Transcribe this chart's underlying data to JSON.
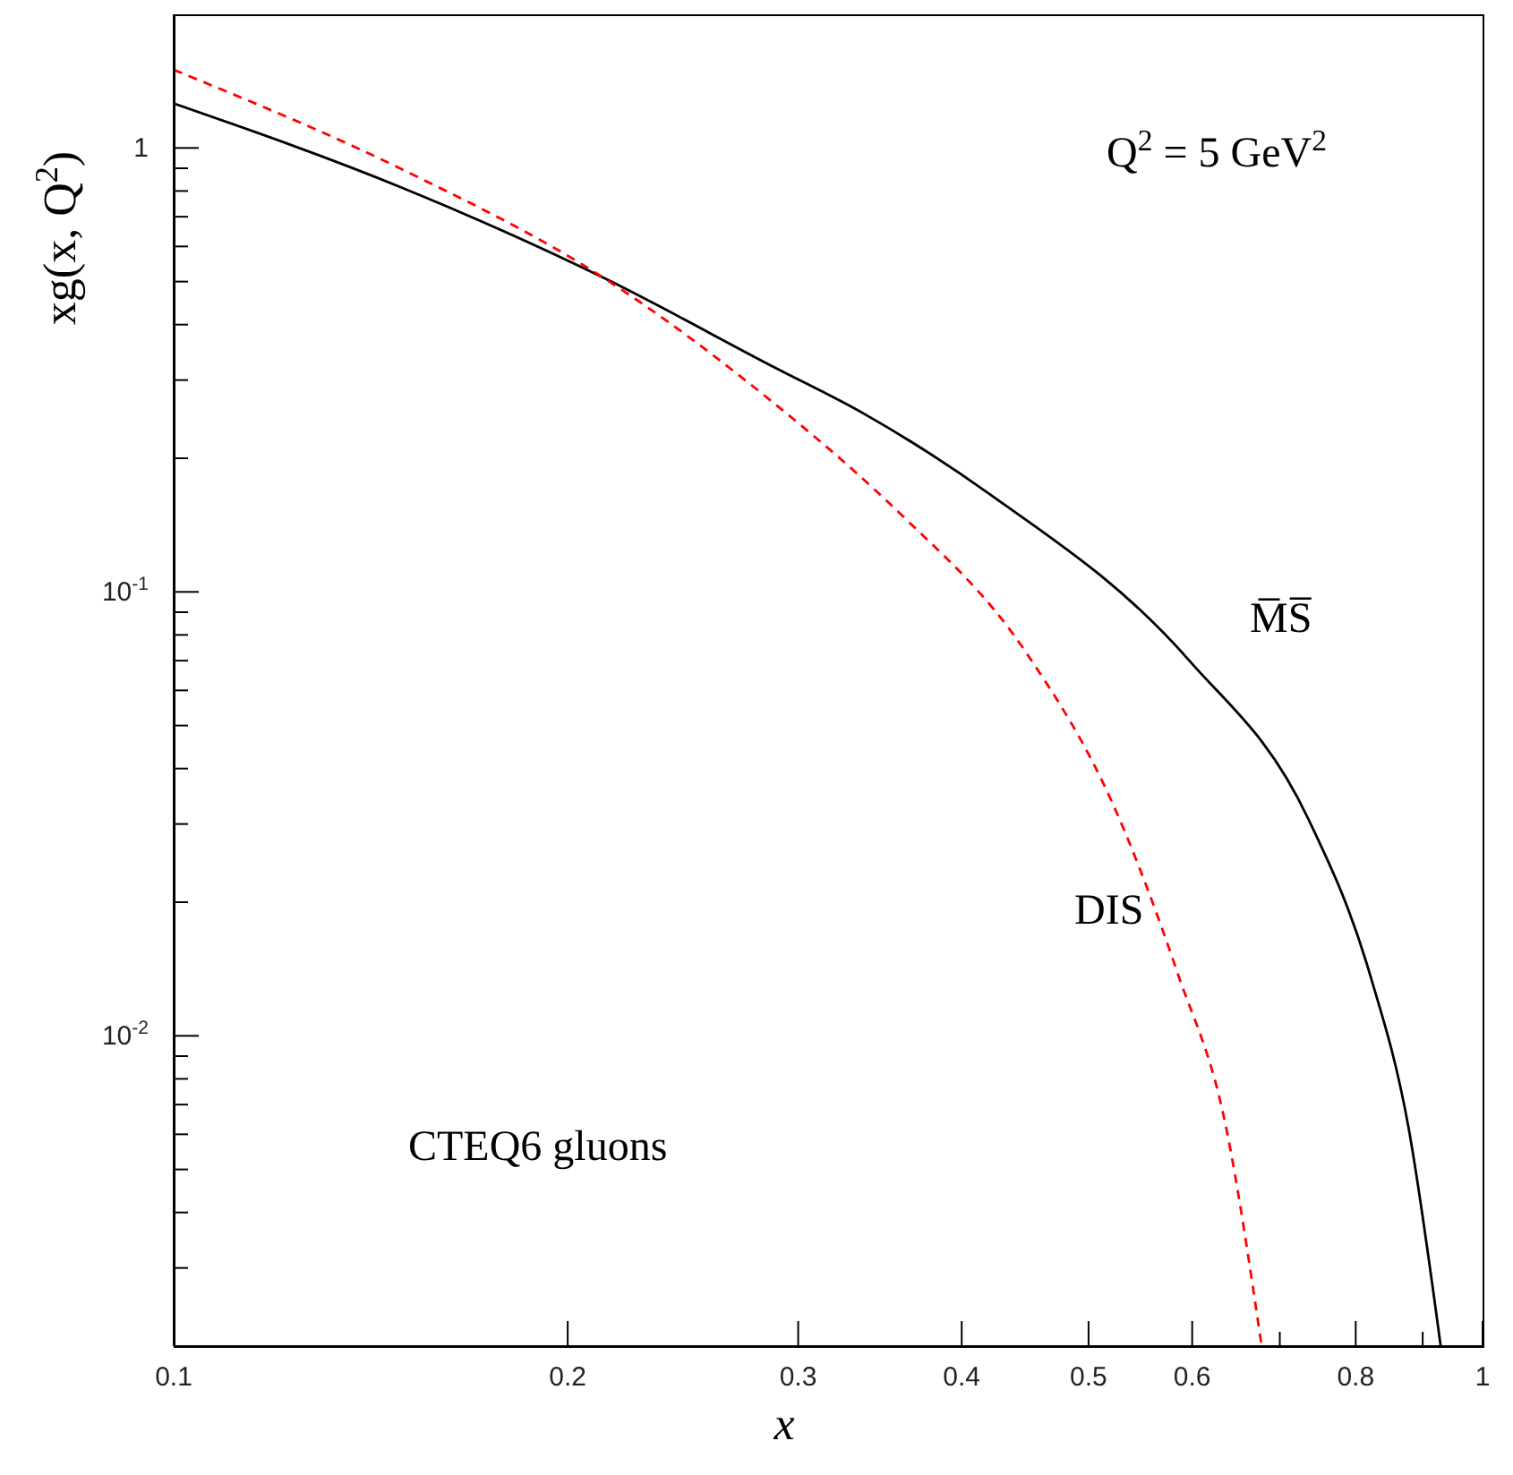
{
  "chart_data": {
    "type": "line",
    "xlabel": "x",
    "ylabel": "xg(x, Q$^{2}$)",
    "log": "xy",
    "marker": "none",
    "xlim": [
      0.1,
      1
    ],
    "xticks": [
      0.1,
      0.2,
      0.3,
      0.4,
      0.5,
      0.6,
      {
        "value": 0.7,
        "label": null
      },
      0.8,
      {
        "value": 0.9,
        "label": null
      },
      1
    ],
    "ylim": [
      0.002,
      2
    ],
    "yticks": [
      {
        "value": 0.002,
        "label": null
      },
      {
        "value": 0.003,
        "label": null
      },
      {
        "value": 0.004,
        "label": null
      },
      {
        "value": 0.005,
        "label": null
      },
      {
        "value": 0.006,
        "label": null
      },
      {
        "value": 0.007,
        "label": null
      },
      {
        "value": 0.008,
        "label": null
      },
      {
        "value": 0.009,
        "label": null
      },
      {
        "value": 0.01,
        "label": "10$^{-2}$"
      },
      {
        "value": 0.02,
        "label": null
      },
      {
        "value": 0.03,
        "label": null
      },
      {
        "value": 0.04,
        "label": null
      },
      {
        "value": 0.05,
        "label": null
      },
      {
        "value": 0.06,
        "label": null
      },
      {
        "value": 0.07,
        "label": null
      },
      {
        "value": 0.08,
        "label": null
      },
      {
        "value": 0.09,
        "label": null
      },
      {
        "value": 0.1,
        "label": "10$^{-1}$"
      },
      {
        "value": 0.2,
        "label": null
      },
      {
        "value": 0.3,
        "label": null
      },
      {
        "value": 0.4,
        "label": null
      },
      {
        "value": 0.5,
        "label": null
      },
      {
        "value": 0.6,
        "label": null
      },
      {
        "value": 0.7,
        "label": null
      },
      {
        "value": 0.8,
        "label": null
      },
      {
        "value": 0.9,
        "label": null
      },
      {
        "value": 1,
        "label": "1"
      },
      {
        "value": 2,
        "label": null
      }
    ],
    "series": [
      {
        "name": "M̅S̅",
        "color": "#000000",
        "line_style": "solid",
        "x": [
          0.1,
          0.15,
          0.213,
          0.288,
          0.336,
          0.419,
          0.597,
          0.736,
          0.82,
          0.878,
          0.929
        ],
        "values": [
          1.26,
          0.81,
          0.51,
          0.32,
          0.253,
          0.167,
          0.07,
          0.0308,
          0.0138,
          0.0062,
          0.002
        ]
      },
      {
        "name": "DIS",
        "color": "#ff0000",
        "line_style": "dashed",
        "x": [
          0.1,
          0.15,
          0.213,
          0.288,
          0.336,
          0.359,
          0.448,
          0.523,
          0.585,
          0.637,
          0.678
        ],
        "values": [
          1.5,
          0.89,
          0.51,
          0.265,
          0.18,
          0.15,
          0.073,
          0.0328,
          0.0138,
          0.0062,
          0.002
        ]
      }
    ],
    "annotations": [
      "Q$^{2}$ = 5 GeV$^{2}$",
      "CTEQ6  gluons"
    ]
  }
}
